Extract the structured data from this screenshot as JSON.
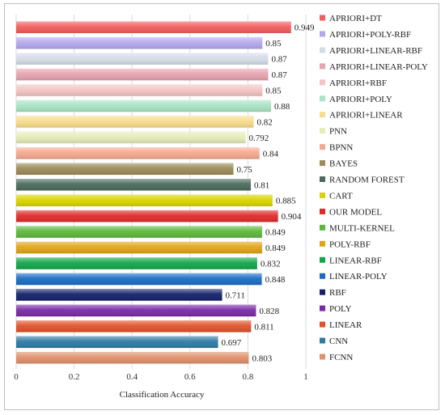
{
  "chart_data": {
    "type": "bar",
    "orientation": "horizontal",
    "xlabel": "Classification Accuracy",
    "xlim": [
      0,
      1
    ],
    "xticks": [
      "0",
      "0.2",
      "0.4",
      "0.6",
      "0.8",
      "1"
    ],
    "grid": true,
    "legend_position": "right",
    "series": [
      {
        "name": "APRIORI+DT",
        "value": 0.949,
        "label": "0.949",
        "color": "#f25c5c"
      },
      {
        "name": "APRIORI+POLY-RBF",
        "value": 0.85,
        "label": "0.85",
        "color": "#b3a8ec"
      },
      {
        "name": "APRIORI+LINEAR-RBF",
        "value": 0.87,
        "label": "0.87",
        "color": "#d4dce6"
      },
      {
        "name": "APRIORI+LINEAR-POLY",
        "value": 0.87,
        "label": "0.87",
        "color": "#e6a3b0"
      },
      {
        "name": "APRIORI+RBF",
        "value": 0.85,
        "label": "0.85",
        "color": "#f2c4c2"
      },
      {
        "name": "APRIORI+POLY",
        "value": 0.88,
        "label": "0.88",
        "color": "#a8e3c4"
      },
      {
        "name": "APRIORI+LINEAR",
        "value": 0.82,
        "label": "0.82",
        "color": "#f7dc8a"
      },
      {
        "name": "PNN",
        "value": 0.792,
        "label": "0.792",
        "color": "#e6ebb8"
      },
      {
        "name": "BPNN",
        "value": 0.84,
        "label": "0.84",
        "color": "#f5a890"
      },
      {
        "name": "BAYES",
        "value": 0.75,
        "label": "0.75",
        "color": "#9c8a58"
      },
      {
        "name": "RANDOM FOREST",
        "value": 0.81,
        "label": "0.81",
        "color": "#4a6b5c"
      },
      {
        "name": "CART",
        "value": 0.885,
        "label": "0.885",
        "color": "#d9d400"
      },
      {
        "name": "OUR MODEL",
        "value": 0.904,
        "label": "0.904",
        "color": "#e02a2a"
      },
      {
        "name": "MULTI-KERNEL",
        "value": 0.849,
        "label": "0.849",
        "color": "#5cb83a"
      },
      {
        "name": "POLY-RBF",
        "value": 0.849,
        "label": "0.849",
        "color": "#e0a414"
      },
      {
        "name": "LINEAR-RBF",
        "value": 0.832,
        "label": "0.832",
        "color": "#12a64a"
      },
      {
        "name": "LINEAR-POLY",
        "value": 0.848,
        "label": "0.848",
        "color": "#1a6cc4"
      },
      {
        "name": "RBF",
        "value": 0.711,
        "label": "0.711",
        "color": "#14206b"
      },
      {
        "name": "POLY",
        "value": 0.828,
        "label": "0.828",
        "color": "#7a2aa6"
      },
      {
        "name": "LINEAR",
        "value": 0.811,
        "label": "0.811",
        "color": "#e0522a"
      },
      {
        "name": "CNN",
        "value": 0.697,
        "label": "0.697",
        "color": "#2e7aa6"
      },
      {
        "name": "FCNN",
        "value": 0.803,
        "label": "0.803",
        "color": "#e0906a"
      }
    ]
  }
}
